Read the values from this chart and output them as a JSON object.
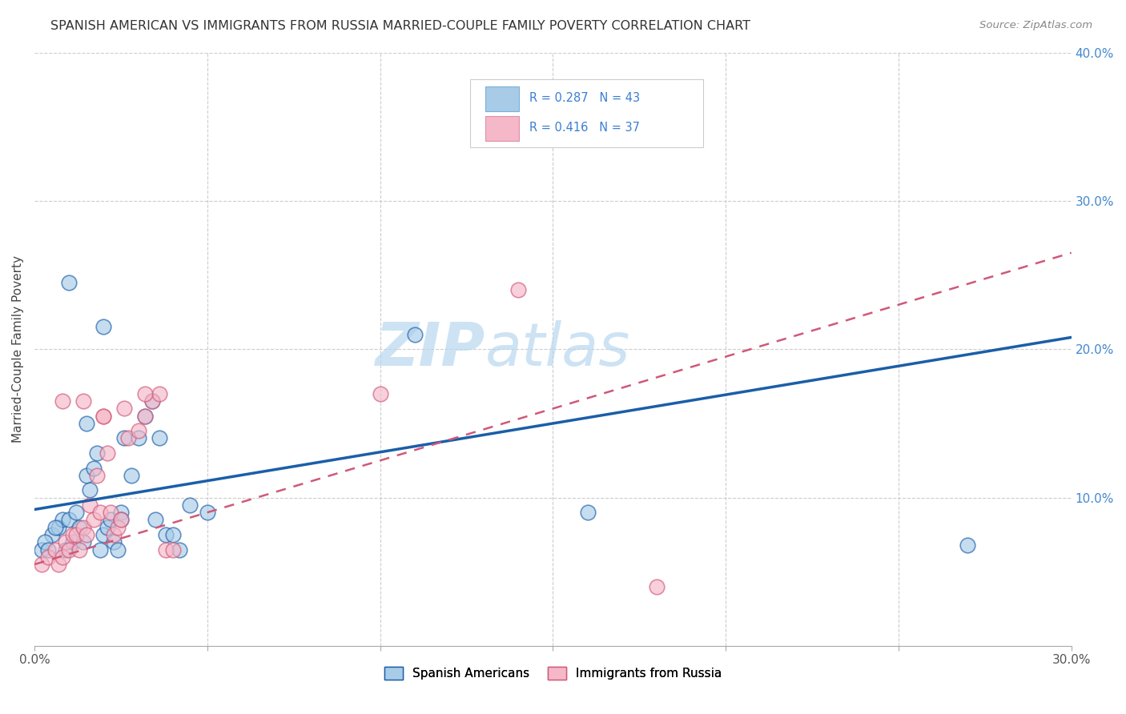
{
  "title": "SPANISH AMERICAN VS IMMIGRANTS FROM RUSSIA MARRIED-COUPLE FAMILY POVERTY CORRELATION CHART",
  "source": "Source: ZipAtlas.com",
  "ylabel": "Married-Couple Family Poverty",
  "xlim": [
    0,
    0.3
  ],
  "ylim": [
    0,
    0.4
  ],
  "xticks": [
    0.0,
    0.05,
    0.1,
    0.15,
    0.2,
    0.25,
    0.3
  ],
  "yticks": [
    0.0,
    0.1,
    0.2,
    0.3,
    0.4
  ],
  "color_blue": "#a8cce8",
  "color_pink": "#f5b8c8",
  "color_blue_line": "#1a5ea8",
  "color_pink_line": "#d05878",
  "color_blue_text": "#3b7fd4",
  "color_pink_text": "#e0607a",
  "watermark_zip": "ZIP",
  "watermark_atlas": "atlas",
  "blue_scatter_x": [
    0.005,
    0.007,
    0.008,
    0.009,
    0.01,
    0.011,
    0.012,
    0.013,
    0.014,
    0.015,
    0.016,
    0.017,
    0.018,
    0.019,
    0.02,
    0.021,
    0.022,
    0.023,
    0.024,
    0.025,
    0.026,
    0.028,
    0.03,
    0.032,
    0.034,
    0.036,
    0.038,
    0.04,
    0.042,
    0.002,
    0.003,
    0.004,
    0.006,
    0.015,
    0.025,
    0.035,
    0.045,
    0.05,
    0.01,
    0.02,
    0.11,
    0.16,
    0.27
  ],
  "blue_scatter_y": [
    0.075,
    0.08,
    0.085,
    0.065,
    0.085,
    0.07,
    0.09,
    0.08,
    0.07,
    0.115,
    0.105,
    0.12,
    0.13,
    0.065,
    0.075,
    0.08,
    0.085,
    0.07,
    0.065,
    0.09,
    0.14,
    0.115,
    0.14,
    0.155,
    0.165,
    0.14,
    0.075,
    0.075,
    0.065,
    0.065,
    0.07,
    0.065,
    0.08,
    0.15,
    0.085,
    0.085,
    0.095,
    0.09,
    0.245,
    0.215,
    0.21,
    0.09,
    0.068
  ],
  "pink_scatter_x": [
    0.002,
    0.004,
    0.006,
    0.007,
    0.008,
    0.009,
    0.01,
    0.011,
    0.012,
    0.013,
    0.014,
    0.015,
    0.016,
    0.017,
    0.018,
    0.019,
    0.02,
    0.021,
    0.022,
    0.023,
    0.024,
    0.025,
    0.027,
    0.03,
    0.032,
    0.034,
    0.036,
    0.038,
    0.008,
    0.014,
    0.02,
    0.026,
    0.032,
    0.04,
    0.1,
    0.18,
    0.14
  ],
  "pink_scatter_y": [
    0.055,
    0.06,
    0.065,
    0.055,
    0.06,
    0.07,
    0.065,
    0.075,
    0.075,
    0.065,
    0.08,
    0.075,
    0.095,
    0.085,
    0.115,
    0.09,
    0.155,
    0.13,
    0.09,
    0.075,
    0.08,
    0.085,
    0.14,
    0.145,
    0.155,
    0.165,
    0.17,
    0.065,
    0.165,
    0.165,
    0.155,
    0.16,
    0.17,
    0.065,
    0.17,
    0.04,
    0.24
  ],
  "blue_line_x": [
    0.0,
    0.3
  ],
  "blue_line_y": [
    0.092,
    0.208
  ],
  "pink_line_x": [
    0.0,
    0.3
  ],
  "pink_line_y": [
    0.055,
    0.265
  ]
}
